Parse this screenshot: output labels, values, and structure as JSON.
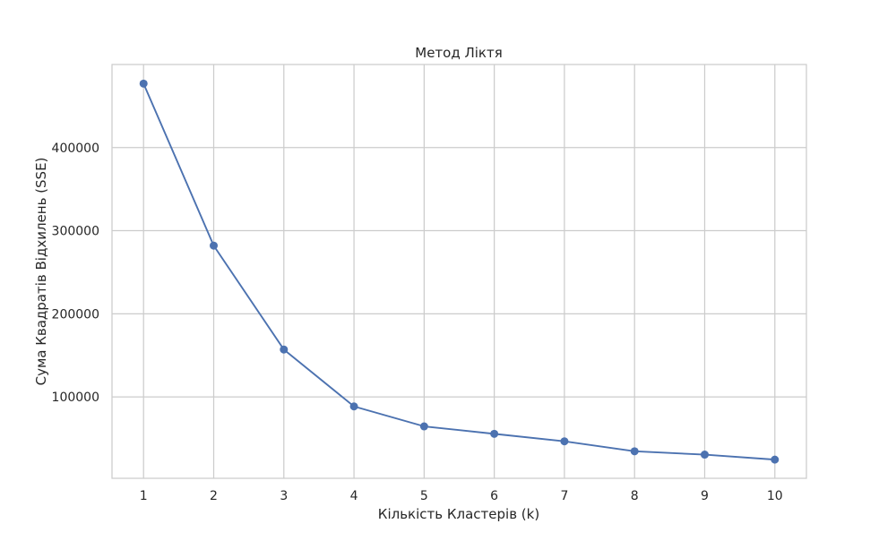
{
  "chart_data": {
    "type": "line",
    "title": "Метод Ліктя",
    "xlabel": "Кількість Кластерів (k)",
    "ylabel": "Сума Квадратів Відхилень (SSE)",
    "x": [
      1,
      2,
      3,
      4,
      5,
      6,
      7,
      8,
      9,
      10
    ],
    "series": [
      {
        "values": [
          477000,
          282000,
          157000,
          88500,
          64500,
          55500,
          46500,
          34500,
          30500,
          24500
        ],
        "color": "#4c72b0",
        "marker": "circle"
      }
    ],
    "xticks": [
      "1",
      "2",
      "3",
      "4",
      "5",
      "6",
      "7",
      "8",
      "9",
      "10"
    ],
    "yticks": [
      100000,
      200000,
      300000,
      400000
    ],
    "ytick_labels": [
      "100000",
      "200000",
      "300000",
      "400000"
    ],
    "xlim": [
      0.55,
      10.45
    ],
    "ylim": [
      2000,
      500000
    ],
    "grid": true,
    "legend": "none"
  }
}
